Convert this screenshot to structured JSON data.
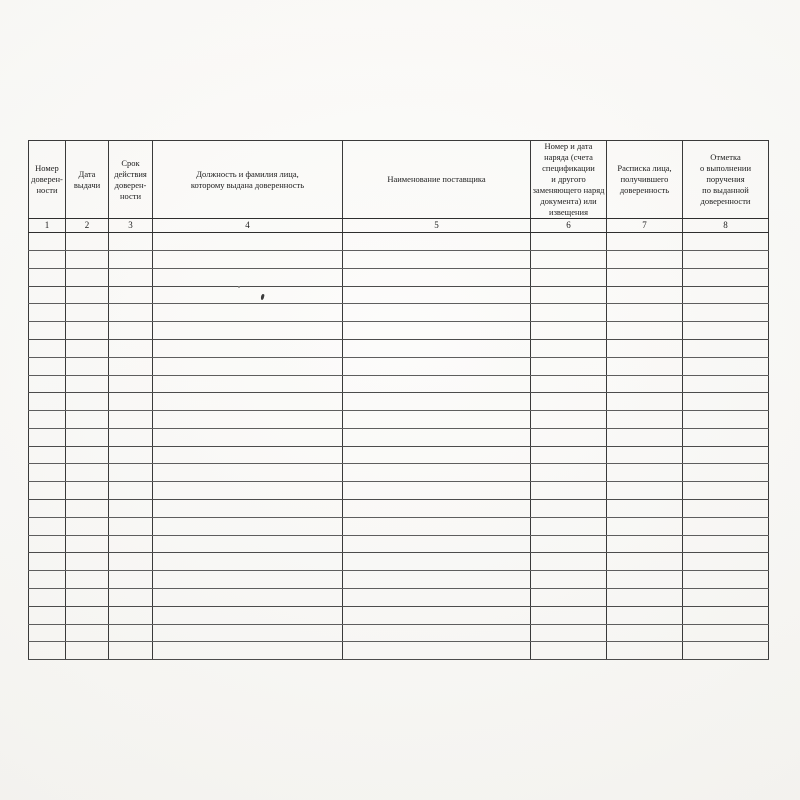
{
  "table": {
    "columns": [
      {
        "index": "1",
        "header": "Номер\nдоверен-\nности"
      },
      {
        "index": "2",
        "header": "Дата\nвыдачи"
      },
      {
        "index": "3",
        "header": "Срок\nдействия\nдоверен-\nности"
      },
      {
        "index": "4",
        "header": "Должность и фамилия лица,\nкоторому выдана доверенность"
      },
      {
        "index": "5",
        "header": "Наименование поставщика"
      },
      {
        "index": "6",
        "header": "Номер и дата\nнаряда (счета\nспецификации\nи другого\nзаменяющего наряд\nдокумента) или\nизвещения"
      },
      {
        "index": "7",
        "header": "Расписка лица,\nполучившего\nдоверенность"
      },
      {
        "index": "8",
        "header": "Отметка\nо выполнении\nпоручения\nпо выданной\nдоверенности"
      }
    ],
    "body_row_count": 24
  },
  "artifacts": [
    "ink-speck",
    "ink-dot"
  ]
}
